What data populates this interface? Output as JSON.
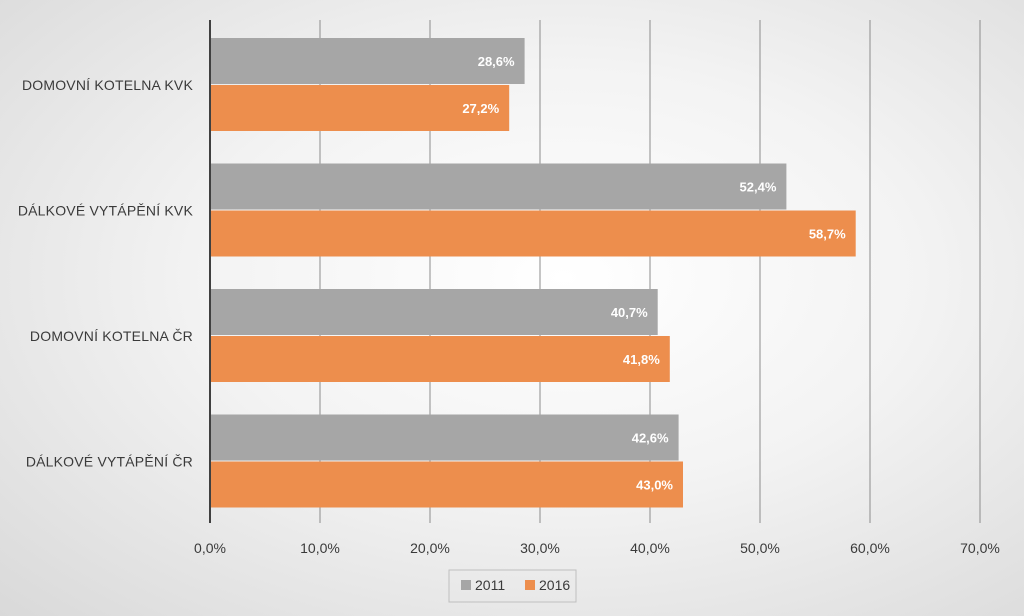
{
  "chart_data": {
    "type": "bar",
    "orientation": "horizontal",
    "categories": [
      "DOMOVNÍ KOTELNA KVK",
      "DÁLKOVÉ VYTÁPĚNÍ KVK",
      "DOMOVNÍ KOTELNA ČR",
      "DÁLKOVÉ VYTÁPĚNÍ ČR"
    ],
    "series": [
      {
        "name": "2011",
        "color": "#a6a6a6",
        "values": [
          28.6,
          52.4,
          40.7,
          42.6
        ],
        "labels": [
          "28,6%",
          "52,4%",
          "40,7%",
          "42,6%"
        ]
      },
      {
        "name": "2016",
        "color": "#ed8e4d",
        "values": [
          27.2,
          58.7,
          41.8,
          43.0
        ],
        "labels": [
          "27,2%",
          "58,7%",
          "41,8%",
          "43,0%"
        ]
      }
    ],
    "xlim": [
      0,
      70
    ],
    "xticks": [
      0,
      10,
      20,
      30,
      40,
      50,
      60,
      70
    ],
    "xtick_labels": [
      "0,0%",
      "10,0%",
      "20,0%",
      "30,0%",
      "40,0%",
      "50,0%",
      "60,0%",
      "70,0%"
    ],
    "grid": true,
    "legend_position": "bottom"
  }
}
